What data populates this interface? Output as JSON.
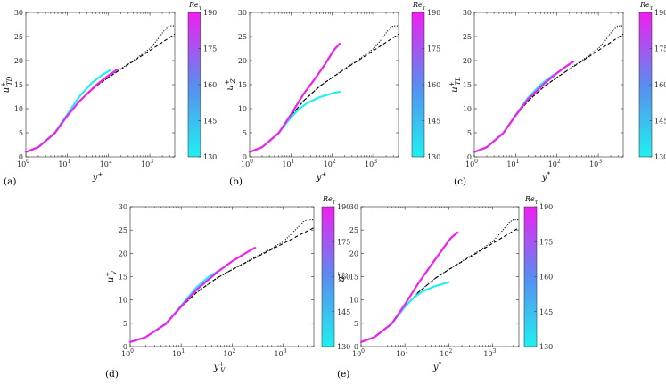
{
  "colors": {
    "low": "#1ff0f0",
    "mid": "#5a8cf0",
    "high": "#f01ff0",
    "axis": "#262626",
    "reference": "#000000"
  },
  "colorbar": {
    "title_main": "Re",
    "title_sub": "τ",
    "ticks": [
      130,
      145,
      160,
      175,
      190
    ],
    "range": [
      130,
      190
    ]
  },
  "chart_data": [
    {
      "id": "a",
      "type": "line",
      "label": "(a)",
      "ylabel": {
        "main": "u",
        "sup": "+",
        "sub": "TD"
      },
      "xlabel": {
        "main": "y",
        "sup": "+",
        "sub": ""
      },
      "xlim": [
        1,
        4000
      ],
      "ylim": [
        0,
        30
      ],
      "xscale": "log",
      "xticks": [
        "10",
        "10",
        "10",
        "10"
      ],
      "xtick_exp": [
        "0",
        "1",
        "2",
        "3"
      ],
      "yticks": [
        "0",
        "5",
        "10",
        "15",
        "20",
        "25",
        "30"
      ],
      "reference_dns": {
        "style": "dotted",
        "x": [
          1,
          2,
          5,
          10,
          20,
          50,
          100,
          200,
          500,
          1000,
          1500,
          2000,
          2500,
          3000,
          4000
        ],
        "y": [
          1.0,
          2.0,
          4.9,
          8.5,
          11.6,
          14.7,
          16.5,
          18.3,
          20.6,
          22.5,
          24.3,
          25.7,
          26.8,
          27.2,
          27.2
        ]
      },
      "reference_law": {
        "style": "dashed",
        "x": [
          1,
          2,
          5,
          10,
          20,
          50,
          100,
          200,
          500,
          1000,
          2000,
          4000
        ],
        "y": [
          1.0,
          2.0,
          4.9,
          8.5,
          11.6,
          14.7,
          16.5,
          18.2,
          20.4,
          22.1,
          23.8,
          25.5
        ]
      },
      "series": [
        {
          "name": "Re_tau = 130",
          "re": 130,
          "x": [
            1,
            2,
            5,
            10,
            20,
            40,
            70,
            110
          ],
          "y": [
            1.0,
            2.0,
            5.0,
            8.8,
            12.6,
            15.4,
            17.0,
            18.0
          ]
        },
        {
          "name": "Re_tau = 190",
          "re": 190,
          "x": [
            1,
            2,
            5,
            10,
            20,
            50,
            100,
            160
          ],
          "y": [
            1.0,
            2.0,
            4.9,
            8.5,
            11.6,
            14.9,
            16.9,
            18.1
          ]
        }
      ]
    },
    {
      "id": "b",
      "type": "line",
      "label": "(b)",
      "ylabel": {
        "main": "u",
        "sup": "+",
        "sub": "Z"
      },
      "xlabel": {
        "main": "y",
        "sup": "+",
        "sub": ""
      },
      "xlim": [
        1,
        4000
      ],
      "ylim": [
        0,
        30
      ],
      "xscale": "log",
      "xticks": [
        "10",
        "10",
        "10",
        "10"
      ],
      "xtick_exp": [
        "0",
        "1",
        "2",
        "3"
      ],
      "yticks": [
        "0",
        "5",
        "10",
        "15",
        "20",
        "25",
        "30"
      ],
      "reference_dns": {
        "style": "dotted",
        "x": [
          1,
          2,
          5,
          10,
          20,
          50,
          100,
          200,
          500,
          1000,
          1500,
          2000,
          2500,
          3000,
          4000
        ],
        "y": [
          1.0,
          2.0,
          4.9,
          8.5,
          11.6,
          14.7,
          16.5,
          18.3,
          20.6,
          22.5,
          24.3,
          25.7,
          26.8,
          27.2,
          27.2
        ]
      },
      "reference_law": {
        "style": "dashed",
        "x": [
          1,
          2,
          5,
          10,
          20,
          50,
          100,
          200,
          500,
          1000,
          2000,
          4000
        ],
        "y": [
          1.0,
          2.0,
          4.9,
          8.5,
          11.6,
          14.7,
          16.5,
          18.2,
          20.4,
          22.1,
          23.8,
          25.5
        ]
      },
      "series": [
        {
          "name": "Re_tau = 130",
          "re": 130,
          "x": [
            1,
            2,
            5,
            10,
            15,
            25,
            50,
            100,
            150
          ],
          "y": [
            1.0,
            2.0,
            4.9,
            8.2,
            9.8,
            11.2,
            12.4,
            13.2,
            13.5
          ]
        },
        {
          "name": "Re_tau = 190",
          "re": 190,
          "x": [
            1,
            2,
            5,
            10,
            20,
            40,
            70,
            110,
            150
          ],
          "y": [
            1.0,
            2.0,
            4.9,
            8.8,
            13.0,
            16.5,
            19.5,
            22.2,
            23.5
          ]
        }
      ]
    },
    {
      "id": "c",
      "type": "line",
      "label": "(c)",
      "ylabel": {
        "main": "u",
        "sup": "+",
        "sub": "TL"
      },
      "xlabel": {
        "main": "y",
        "sup": "*",
        "sub": ""
      },
      "xlim": [
        1,
        4000
      ],
      "ylim": [
        0,
        30
      ],
      "xscale": "log",
      "xticks": [
        "10",
        "10",
        "10",
        "10"
      ],
      "xtick_exp": [
        "0",
        "1",
        "2",
        "3"
      ],
      "yticks": [
        "0",
        "5",
        "10",
        "15",
        "20",
        "25",
        "30"
      ],
      "reference_dns": {
        "style": "dotted",
        "x": [
          1,
          2,
          5,
          10,
          20,
          50,
          100,
          200,
          500,
          1000,
          1500,
          2000,
          2500,
          3000,
          4000
        ],
        "y": [
          1.0,
          2.0,
          4.9,
          8.5,
          11.6,
          14.7,
          16.5,
          18.3,
          20.6,
          22.5,
          24.3,
          25.7,
          26.8,
          27.2,
          27.2
        ]
      },
      "reference_law": {
        "style": "dashed",
        "x": [
          1,
          2,
          5,
          10,
          20,
          50,
          100,
          200,
          500,
          1000,
          2000,
          4000
        ],
        "y": [
          1.0,
          2.0,
          4.9,
          8.5,
          11.6,
          14.7,
          16.5,
          18.2,
          20.4,
          22.1,
          23.8,
          25.5
        ]
      },
      "series": [
        {
          "name": "Re_tau = 130",
          "re": 130,
          "x": [
            1,
            2,
            5,
            10,
            20,
            40,
            70,
            90
          ],
          "y": [
            1.0,
            2.0,
            4.9,
            8.7,
            12.3,
            15.0,
            16.6,
            17.3
          ]
        },
        {
          "name": "Re_tau = 190",
          "re": 190,
          "x": [
            1,
            2,
            5,
            10,
            20,
            50,
            100,
            180,
            250
          ],
          "y": [
            1.0,
            2.0,
            4.9,
            8.6,
            12.0,
            15.3,
            17.4,
            19.0,
            19.8
          ]
        }
      ]
    },
    {
      "id": "d",
      "type": "line",
      "label": "(d)",
      "ylabel": {
        "main": "u",
        "sup": "+",
        "sub": "V"
      },
      "xlabel": {
        "main": "y",
        "sup": "+",
        "sub": "V"
      },
      "xlim": [
        1,
        4000
      ],
      "ylim": [
        0,
        30
      ],
      "xscale": "log",
      "xticks": [
        "10",
        "10",
        "10",
        "10"
      ],
      "xtick_exp": [
        "0",
        "1",
        "2",
        "3"
      ],
      "yticks": [
        "0",
        "5",
        "10",
        "15",
        "20",
        "25",
        "30"
      ],
      "reference_dns": {
        "style": "dotted",
        "x": [
          1,
          2,
          5,
          10,
          20,
          50,
          100,
          200,
          500,
          1000,
          1500,
          2000,
          2500,
          3000,
          4000
        ],
        "y": [
          1.0,
          2.0,
          4.9,
          8.5,
          11.6,
          14.7,
          16.5,
          18.3,
          20.6,
          22.5,
          24.3,
          25.7,
          26.8,
          27.2,
          27.2
        ]
      },
      "reference_law": {
        "style": "dashed",
        "x": [
          1,
          2,
          5,
          10,
          20,
          50,
          100,
          200,
          500,
          1000,
          2000,
          4000
        ],
        "y": [
          1.0,
          2.0,
          4.9,
          8.5,
          11.6,
          14.7,
          16.5,
          18.2,
          20.4,
          22.1,
          23.8,
          25.5
        ]
      },
      "series": [
        {
          "name": "Re_tau = 130",
          "re": 130,
          "x": [
            1,
            2,
            5,
            10,
            20,
            35,
            55
          ],
          "y": [
            1.0,
            2.0,
            4.9,
            8.8,
            12.7,
            15.0,
            16.3
          ]
        },
        {
          "name": "Re_tau = 190",
          "re": 190,
          "x": [
            1,
            2,
            5,
            10,
            20,
            50,
            100,
            200,
            280
          ],
          "y": [
            1.0,
            2.0,
            4.9,
            8.6,
            12.2,
            15.9,
            18.3,
            20.3,
            21.2
          ]
        }
      ]
    },
    {
      "id": "e",
      "type": "line",
      "label": "(e)",
      "ylabel": {
        "main": "u",
        "sup": "+",
        "sub": "t"
      },
      "xlabel": {
        "main": "y",
        "sup": "*",
        "sub": ""
      },
      "xlim": [
        1,
        4000
      ],
      "ylim": [
        0,
        30
      ],
      "xscale": "log",
      "xticks": [
        "10",
        "10",
        "10",
        "10"
      ],
      "xtick_exp": [
        "0",
        "1",
        "2",
        "3"
      ],
      "yticks": [
        "0",
        "5",
        "10",
        "15",
        "20",
        "25",
        "30"
      ],
      "reference_dns": {
        "style": "dotted",
        "x": [
          1,
          2,
          5,
          10,
          20,
          50,
          100,
          200,
          500,
          1000,
          1500,
          2000,
          2500,
          3000,
          4000
        ],
        "y": [
          1.0,
          2.0,
          4.9,
          8.5,
          11.6,
          14.7,
          16.5,
          18.3,
          20.6,
          22.5,
          24.3,
          25.7,
          26.8,
          27.2,
          27.2
        ]
      },
      "reference_law": {
        "style": "dashed",
        "x": [
          1,
          2,
          5,
          10,
          20,
          50,
          100,
          200,
          500,
          1000,
          2000,
          4000
        ],
        "y": [
          1.0,
          2.0,
          4.9,
          8.5,
          11.6,
          14.7,
          16.5,
          18.2,
          20.4,
          22.1,
          23.8,
          25.5
        ]
      },
      "series": [
        {
          "name": "Re_tau = 130",
          "re": 130,
          "x": [
            1,
            2,
            5,
            10,
            15,
            25,
            50,
            100
          ],
          "y": [
            1.0,
            2.0,
            4.9,
            8.5,
            10.3,
            11.8,
            13.0,
            13.8
          ]
        },
        {
          "name": "Re_tau = 190",
          "re": 190,
          "x": [
            1,
            2,
            5,
            10,
            20,
            40,
            70,
            110,
            160
          ],
          "y": [
            1.0,
            2.0,
            4.9,
            9.0,
            13.5,
            17.5,
            20.7,
            23.2,
            24.5
          ]
        }
      ]
    }
  ]
}
